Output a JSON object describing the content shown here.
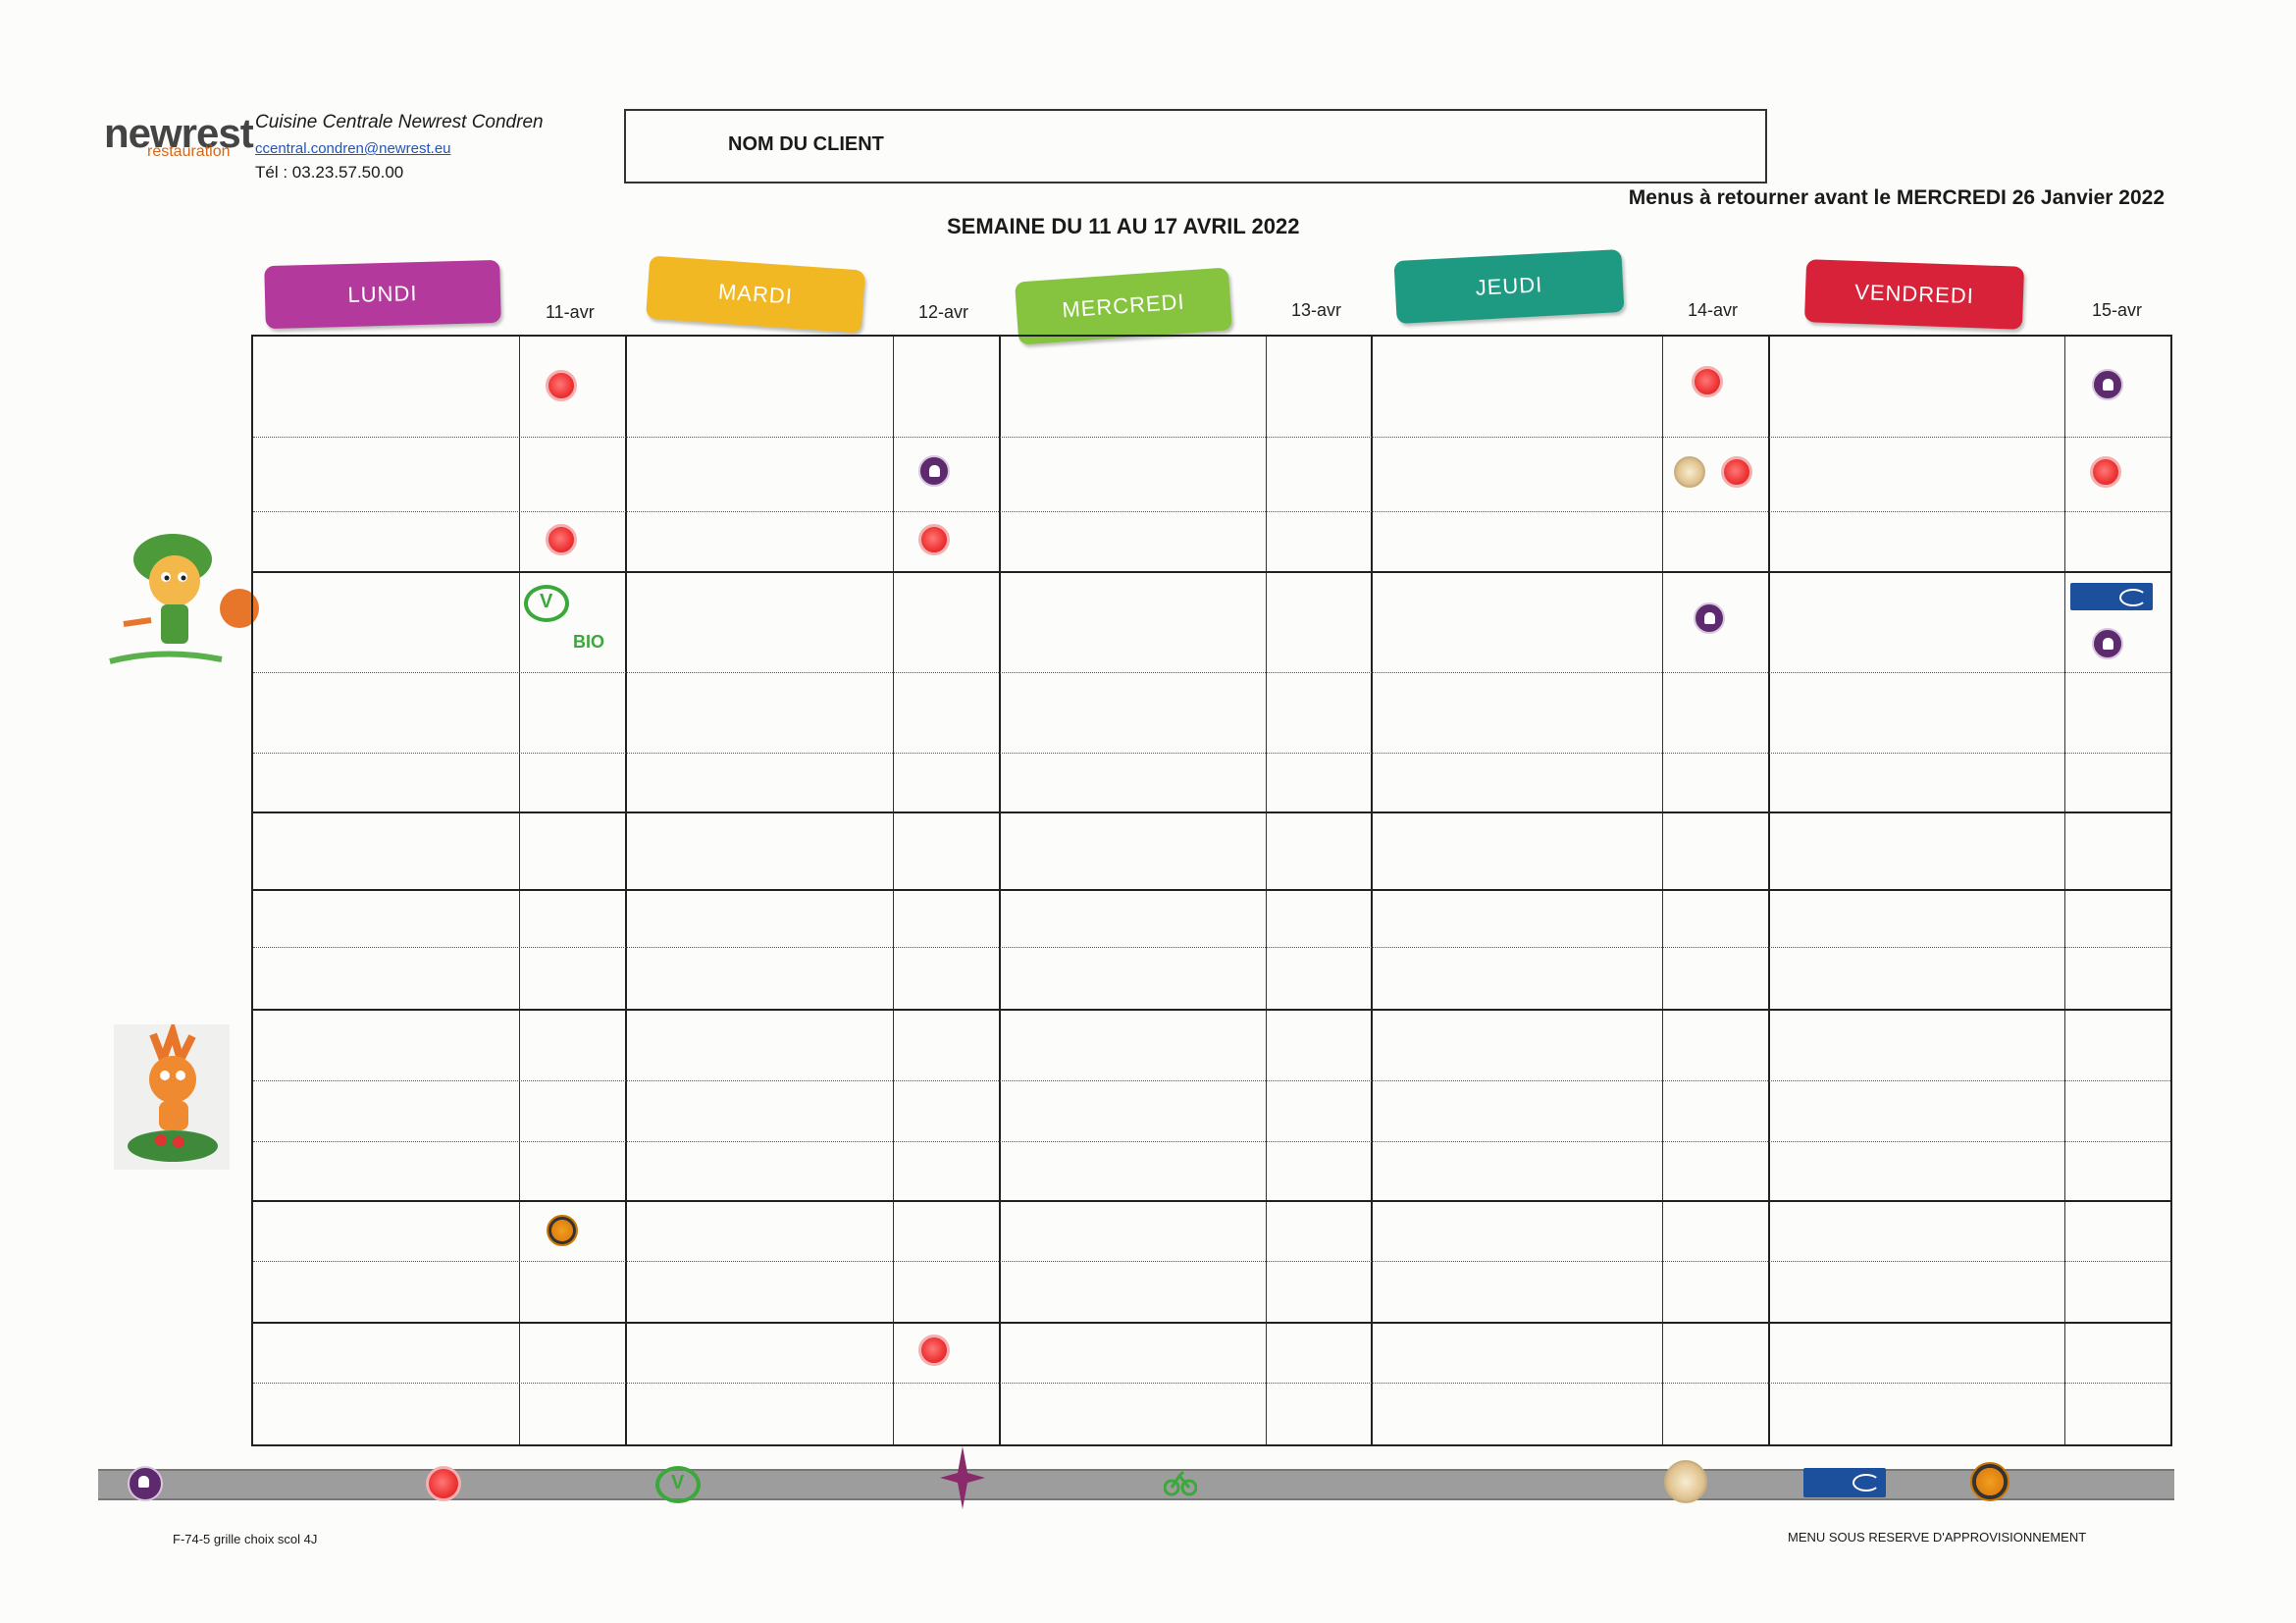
{
  "header": {
    "logo_text": "newrest",
    "logo_sub": "restauration",
    "org_name": "Cuisine Centrale Newrest Condren",
    "email": "ccentral.condren@newrest.eu",
    "phone": "Tél : 03.23.57.50.00",
    "client_label": "NOM DU CLIENT",
    "deadline": "Menus à retourner avant le MERCREDI 26 Janvier 2022",
    "week_title": "SEMAINE DU 11 AU 17 AVRIL 2022"
  },
  "days": [
    {
      "label": "LUNDI",
      "date": "11-avr",
      "color": "#b3399c"
    },
    {
      "label": "MARDI",
      "date": "12-avr",
      "color": "#f2b824"
    },
    {
      "label": "MERCREDI",
      "date": "13-avr",
      "color": "#86c440"
    },
    {
      "label": "JEUDI",
      "date": "14-avr",
      "color": "#1f9a82"
    },
    {
      "label": "VENDREDI",
      "date": "15-avr",
      "color": "#d8223a"
    }
  ],
  "icons": {
    "tomato": "tomato-icon",
    "chef": "chef-hat-icon",
    "vegan": "vegetarian-icon",
    "bio": "BIO",
    "msc": "msc-fish-icon",
    "label_rouge": "label-rouge-icon",
    "cheese": "cheese-label-icon",
    "star": "star-icon",
    "bike": "bike-icon"
  },
  "footer": {
    "left": "F-74-5 grille choix scol 4J",
    "right": "MENU SOUS RESERVE D'APPROVISIONNEMENT"
  }
}
